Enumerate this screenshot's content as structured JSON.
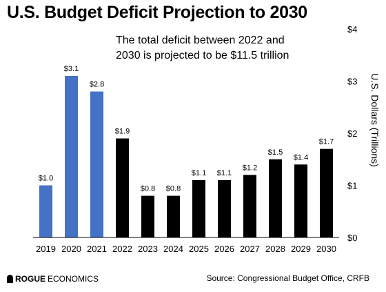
{
  "title": "U.S. Budget Deficit Projection to 2030",
  "footer": {
    "logo_rogue": "ROGUE",
    "logo_economics": "ECONOMICS",
    "source": "Source: Congressional Budget Office, CRFB"
  },
  "chart_data": {
    "type": "bar",
    "title": "U.S. Budget Deficit Projection to 2030",
    "annotation": [
      "The total deficit between 2022 and",
      "2030 is projected to be $11.5 trillion"
    ],
    "categories": [
      "2019",
      "2020",
      "2021",
      "2022",
      "2023",
      "2024",
      "2025",
      "2026",
      "2027",
      "2028",
      "2029",
      "2030"
    ],
    "values": [
      1.0,
      3.1,
      2.8,
      1.9,
      0.8,
      0.8,
      1.1,
      1.1,
      1.2,
      1.5,
      1.4,
      1.7
    ],
    "data_labels": [
      "$1.0",
      "$3.1",
      "$2.8",
      "$1.9",
      "$0.8",
      "$0.8",
      "$1.1",
      "$1.1",
      "$1.2",
      "$1.5",
      "$1.4",
      "$1.7"
    ],
    "colors": [
      "#4472c4",
      "#4472c4",
      "#4472c4",
      "#000000",
      "#000000",
      "#000000",
      "#000000",
      "#000000",
      "#000000",
      "#000000",
      "#000000",
      "#000000"
    ],
    "ylabel": "U.S. Dollars (Trillions)",
    "y_axis_position": "right",
    "yticks": [
      0,
      1,
      2,
      3,
      4
    ],
    "ytick_labels": [
      "$0",
      "$1",
      "$2",
      "$3",
      "$4"
    ],
    "ylim": [
      0,
      4
    ],
    "grid": false
  }
}
